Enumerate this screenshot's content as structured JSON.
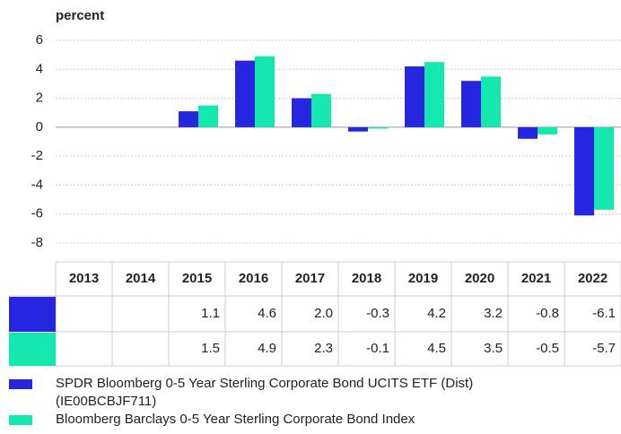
{
  "chart_data": {
    "type": "bar",
    "y_label": "percent",
    "categories": [
      "2013",
      "2014",
      "2015",
      "2016",
      "2017",
      "2018",
      "2019",
      "2020",
      "2021",
      "2022"
    ],
    "series": [
      {
        "name": "SPDR Bloomberg 0-5 Year Sterling Corporate Bond UCITS ETF (Dist) (IE00BCBJF711)",
        "color": "#2626e0",
        "values": [
          null,
          null,
          1.1,
          4.6,
          2,
          -0.3,
          4.2,
          3.2,
          -0.8,
          -6.1
        ],
        "value_labels": [
          null,
          null,
          "1.1",
          "4.6",
          "2.0",
          "-0.3",
          "4.2",
          "3.2",
          "-0.8",
          "-6.1"
        ]
      },
      {
        "name": "Bloomberg Barclays 0-5 Year Sterling Corporate Bond Index",
        "color": "#14e8ae",
        "values": [
          null,
          null,
          1.5,
          4.9,
          2.3,
          -0.1,
          4.5,
          3.5,
          -0.5,
          -5.7
        ],
        "value_labels": [
          null,
          null,
          "1.5",
          "4.9",
          "2.3",
          "-0.1",
          "4.5",
          "3.5",
          "-0.5",
          "-5.7"
        ]
      }
    ],
    "ylim": [
      -8,
      6
    ],
    "yticks": [
      -8,
      -6,
      -4,
      -2,
      0,
      2,
      4,
      6
    ],
    "grid": true
  }
}
